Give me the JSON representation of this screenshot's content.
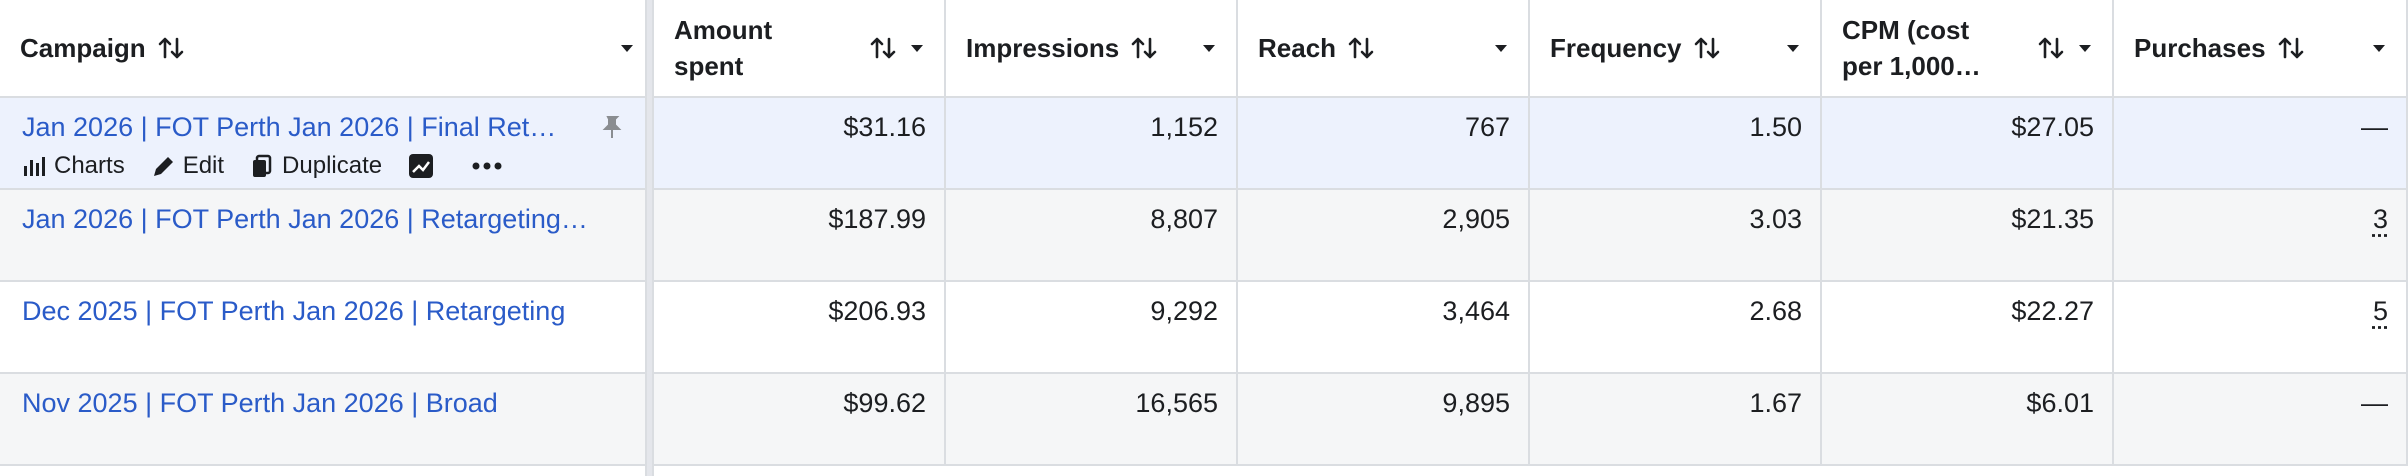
{
  "table": {
    "columns": [
      "Campaign",
      "Amount spent",
      "Impressions",
      "Reach",
      "Frequency",
      "CPM (cost per 1,000…",
      "Purchases"
    ],
    "rows": [
      {
        "campaign": "Jan 2026 | FOT Perth Jan 2026 | Final Ret…",
        "cells": [
          "$31.16",
          "1,152",
          "767",
          "1.50",
          "$27.05",
          "—"
        ]
      },
      {
        "campaign": "Jan 2026 | FOT Perth Jan 2026 | Retargeting…",
        "cells": [
          "$187.99",
          "8,807",
          "2,905",
          "3.03",
          "$21.35",
          "3"
        ]
      },
      {
        "campaign": "Dec 2025 | FOT Perth Jan 2026 | Retargeting",
        "cells": [
          "$206.93",
          "9,292",
          "3,464",
          "2.68",
          "$22.27",
          "5"
        ]
      },
      {
        "campaign": "Nov 2025 | FOT Perth Jan 2026 | Broad",
        "cells": [
          "$99.62",
          "16,565",
          "9,895",
          "1.67",
          "$6.01",
          "—"
        ]
      }
    ],
    "row_actions": [
      "Charts",
      "Edit",
      "Duplicate"
    ]
  }
}
